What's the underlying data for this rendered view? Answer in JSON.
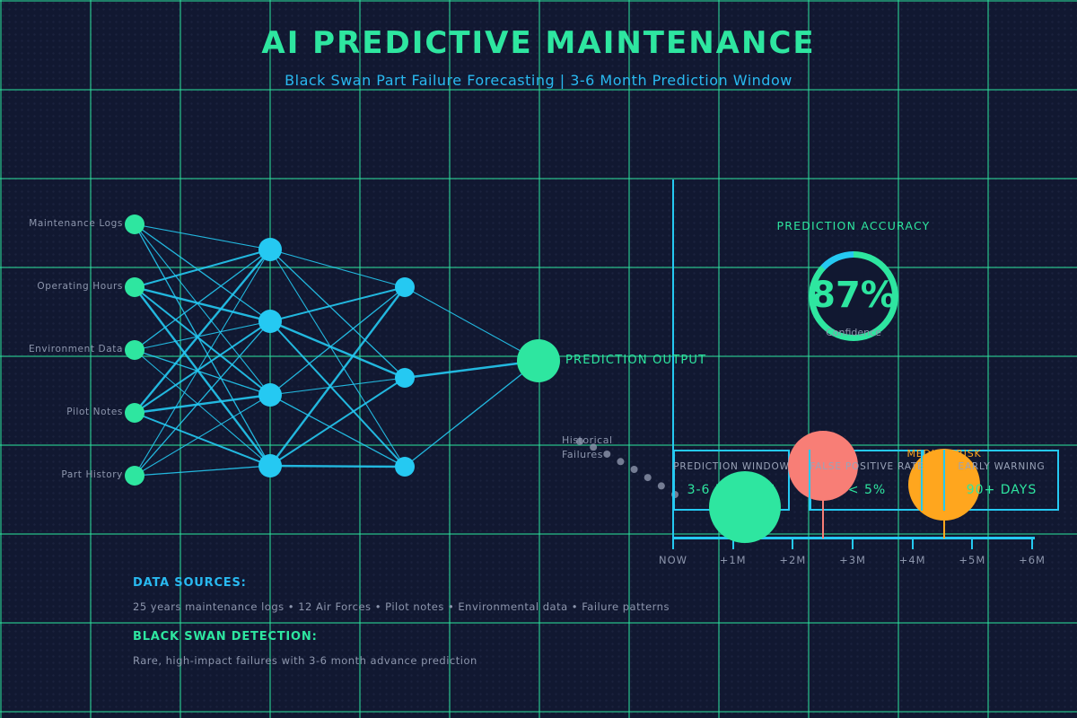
{
  "header": {
    "title": "AI PREDICTIVE MAINTENANCE",
    "subtitle": "Black Swan Part Failure Forecasting | 3-6 Month Prediction Window"
  },
  "network": {
    "inputs": [
      "Maintenance Logs",
      "Operating Hours",
      "Environment Data",
      "Pilot Notes",
      "Part History"
    ],
    "output_label": "PREDICTION OUTPUT"
  },
  "gauge": {
    "title": "PREDICTION ACCURACY",
    "value": "87%",
    "percent": 87,
    "caption": "Confidence"
  },
  "timeline": {
    "tick_labels": [
      "NOW",
      "+1M",
      "+2M",
      "+3M",
      "+4M",
      "+5M",
      "+6M"
    ],
    "historical_label_line1": "Historical",
    "historical_label_line2": "Failures",
    "markers": [
      {
        "name": "prediction-window-marker",
        "color": "#2ee6a0",
        "label": ""
      },
      {
        "name": "high-risk-marker",
        "color": "#f87e76",
        "label": ""
      },
      {
        "name": "medium-risk-marker",
        "color": "#ffa61e",
        "label": "MEDIUM RISK"
      }
    ]
  },
  "metric_boxes": [
    {
      "label": "PREDICTION WINDOW",
      "value": "3-6 MONTHS"
    },
    {
      "label": "FALSE POSITIVE RATE",
      "value": "< 5%"
    },
    {
      "label": "EARLY WARNING",
      "value": "90+ DAYS"
    }
  ],
  "footer": {
    "data_sources_label": "DATA SOURCES:",
    "data_sources_text": "25 years maintenance logs • 12 Air Forces • Pilot notes • Environmental data • Failure patterns",
    "black_swan_label": "BLACK SWAN DETECTION:",
    "black_swan_text": "Rare, high-impact failures with 3-6 month advance prediction"
  },
  "colors": {
    "background": "#111831",
    "grid_green": "#2ee6a0",
    "accent_green": "#2ee6a0",
    "accent_cyan": "#25c9f2",
    "text_gray": "#8d96ad",
    "risk_red": "#f87e76",
    "risk_orange": "#ffa61e"
  }
}
